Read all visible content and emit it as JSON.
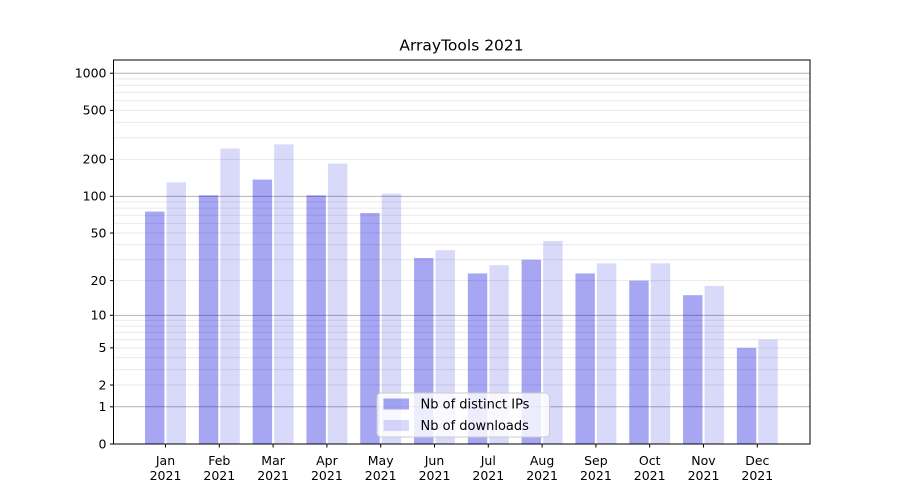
{
  "chart_data": {
    "type": "bar",
    "title": "ArrayTools 2021",
    "categories": [
      "Jan 2021",
      "Feb 2021",
      "Mar 2021",
      "Apr 2021",
      "May 2021",
      "Jun 2021",
      "Jul 2021",
      "Aug 2021",
      "Sep 2021",
      "Oct 2021",
      "Nov 2021",
      "Dec 2021"
    ],
    "series": [
      {
        "name": "Nb of distinct IPs",
        "values": [
          75,
          102,
          137,
          102,
          73,
          31,
          23,
          30,
          23,
          20,
          15,
          5
        ],
        "color": "#0000dd",
        "opacity": 0.35
      },
      {
        "name": "Nb of downloads",
        "values": [
          130,
          245,
          265,
          185,
          105,
          36,
          27,
          43,
          28,
          28,
          18,
          6
        ],
        "color": "#0000dd",
        "opacity": 0.15
      }
    ],
    "yscale": "log1p",
    "ylim": [
      0,
      1280
    ],
    "ytick_labels": [
      "0",
      "1",
      "2",
      "5",
      "10",
      "20",
      "50",
      "100",
      "200",
      "500",
      "1000"
    ],
    "yticks": [
      0,
      1,
      2,
      5,
      10,
      20,
      50,
      100,
      200,
      500,
      1000
    ],
    "gridlines_major": [
      1,
      10,
      100,
      1000
    ],
    "gridlines_minor": [
      2,
      3,
      4,
      5,
      6,
      7,
      8,
      9,
      20,
      30,
      40,
      50,
      60,
      70,
      80,
      90,
      200,
      300,
      400,
      500,
      600,
      700,
      800,
      900
    ],
    "grid": true,
    "legend_position": "lower center-left"
  },
  "styles": {
    "background": "#ffffff",
    "bar_ips_rendered": "#a6a6f3",
    "bar_downloads_rendered": "#d9d9f9",
    "grid_major_color": "#b3b3b3",
    "grid_minor_color": "#e9e9e9",
    "spine_color": "#000000",
    "text_color": "#000000",
    "legend_border_color": "#cccccc",
    "legend_fill": "#ffffff"
  }
}
